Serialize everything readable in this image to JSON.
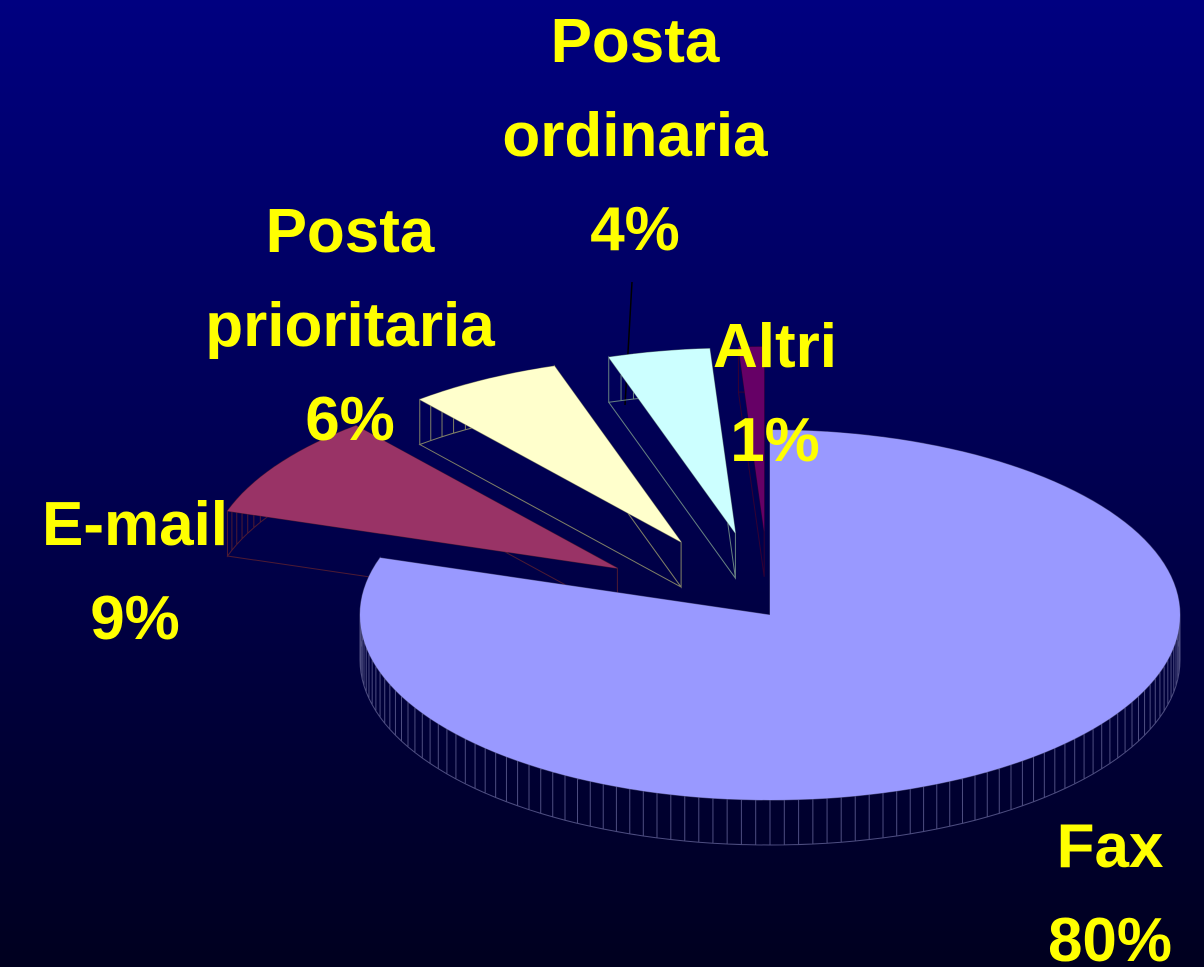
{
  "chart_data": {
    "type": "pie",
    "categories": [
      "Fax",
      "E-mail",
      "Posta prioritaria",
      "Posta ordinaria",
      "Altri"
    ],
    "values": [
      80,
      9,
      6,
      4,
      1
    ],
    "value_labels": [
      "80%",
      "9%",
      "6%",
      "4%",
      "1%"
    ],
    "colors": [
      "#9999ff",
      "#993366",
      "#ffffcc",
      "#ccffff",
      "#660066"
    ]
  }
}
